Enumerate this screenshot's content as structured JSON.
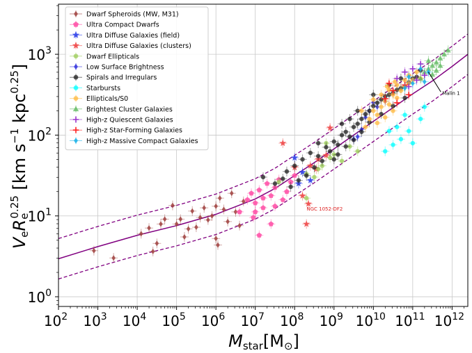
{
  "chart_data": {
    "type": "scatter",
    "title": "",
    "xlabel": {
      "main": "M",
      "sub": "star",
      "unit_open": "[M",
      "unit_sub": "⊙",
      "unit_close": "]"
    },
    "ylabel": {
      "v": "V",
      "v_sub": "e",
      "r": "R",
      "r_sub": "e",
      "r_sup": "0.25",
      "units_open": " [km s",
      "s_sup": "−1",
      "kpc": " kpc",
      "kpc_sup": "0.25",
      "units_close": "]"
    },
    "xlim_log10": [
      2,
      12.4
    ],
    "ylim_log10": [
      -0.12,
      3.62
    ],
    "grid": true,
    "legend_position": "top-left",
    "x_ticks": [
      {
        "exp": 2,
        "base": "10",
        "sup": "2"
      },
      {
        "exp": 3,
        "base": "10",
        "sup": "3"
      },
      {
        "exp": 4,
        "base": "10",
        "sup": "4"
      },
      {
        "exp": 5,
        "base": "10",
        "sup": "5"
      },
      {
        "exp": 6,
        "base": "10",
        "sup": "6"
      },
      {
        "exp": 7,
        "base": "10",
        "sup": "7"
      },
      {
        "exp": 8,
        "base": "10",
        "sup": "8"
      },
      {
        "exp": 9,
        "base": "10",
        "sup": "9"
      },
      {
        "exp": 10,
        "base": "10",
        "sup": "10"
      },
      {
        "exp": 11,
        "base": "10",
        "sup": "11"
      },
      {
        "exp": 12,
        "base": "10",
        "sup": "12"
      }
    ],
    "y_ticks": [
      {
        "exp": 0,
        "base": "10",
        "sup": "0"
      },
      {
        "exp": 1,
        "base": "10",
        "sup": "1"
      },
      {
        "exp": 2,
        "base": "10",
        "sup": "2"
      },
      {
        "exp": 3,
        "base": "10",
        "sup": "3"
      }
    ],
    "relation": {
      "name": "best-fit relation",
      "log_x": [
        2.0,
        3.0,
        4.0,
        5.0,
        6.0,
        7.0,
        7.5,
        8.0,
        8.5,
        9.0,
        9.5,
        10.0,
        10.5,
        11.0,
        11.5,
        12.0,
        12.4
      ],
      "center_log_y": [
        0.47,
        0.62,
        0.76,
        0.88,
        1.02,
        1.21,
        1.34,
        1.5,
        1.66,
        1.83,
        2.0,
        2.17,
        2.34,
        2.51,
        2.67,
        2.85,
        3.0
      ],
      "scatter_dex": 0.25,
      "color": "#800080"
    },
    "series": [
      {
        "name": "Dwarf Spheroids (MW, M31)",
        "marker": "diamond",
        "color": "#a0423f",
        "points": [
          [
            2.9,
            0.57
          ],
          [
            3.4,
            0.48
          ],
          [
            4.1,
            0.78
          ],
          [
            4.3,
            0.85
          ],
          [
            4.4,
            0.56
          ],
          [
            4.5,
            0.66
          ],
          [
            4.7,
            0.96
          ],
          [
            5.1,
            0.96
          ],
          [
            5.3,
            0.84
          ],
          [
            5.5,
            0.86
          ],
          [
            5.8,
            0.95
          ],
          [
            6.0,
            0.72
          ],
          [
            6.05,
            0.64
          ],
          [
            6.3,
            0.93
          ],
          [
            6.5,
            1.05
          ],
          [
            6.7,
            1.18
          ],
          [
            5.7,
            1.1
          ],
          [
            6.0,
            1.12
          ],
          [
            6.2,
            1.08
          ],
          [
            5.6,
            0.98
          ],
          [
            5.9,
            1.0
          ],
          [
            5.4,
            1.06
          ],
          [
            4.9,
            1.13
          ],
          [
            6.1,
            1.22
          ],
          [
            6.4,
            1.28
          ],
          [
            5.2,
            0.74
          ],
          [
            5.0,
            0.9
          ],
          [
            6.6,
            0.88
          ],
          [
            4.6,
            0.9
          ]
        ]
      },
      {
        "name": "Ultra Compact Dwarfs",
        "marker": "pentagon",
        "color": "#ff4da6",
        "points": [
          [
            6.8,
            1.2
          ],
          [
            6.9,
            1.28
          ],
          [
            7.0,
            1.16
          ],
          [
            7.1,
            1.32
          ],
          [
            7.2,
            1.1
          ],
          [
            7.3,
            1.4
          ],
          [
            7.4,
            1.25
          ],
          [
            7.5,
            1.35
          ],
          [
            7.6,
            1.45
          ],
          [
            7.2,
            1.22
          ],
          [
            7.0,
            1.05
          ],
          [
            7.8,
            1.3
          ],
          [
            7.9,
            1.42
          ],
          [
            8.0,
            1.5
          ],
          [
            7.7,
            1.2
          ],
          [
            6.95,
            0.98
          ],
          [
            7.4,
            0.9
          ],
          [
            7.1,
            0.76
          ],
          [
            7.5,
            1.12
          ],
          [
            6.6,
            1.05
          ]
        ]
      },
      {
        "name": "Ultra Diffuse Galaxies (field)",
        "marker": "star",
        "color": "#2b3de8",
        "points": [
          [
            8.0,
            1.72
          ],
          [
            8.2,
            1.54
          ],
          [
            8.4,
            1.44
          ],
          [
            8.1,
            1.4
          ]
        ]
      },
      {
        "name": "Ultra Diffuse Galaxies (clusters)",
        "marker": "star",
        "color": "#ee4444",
        "points": [
          [
            7.7,
            1.9
          ],
          [
            8.3,
            0.9
          ],
          [
            8.35,
            1.15
          ],
          [
            8.55,
            1.58
          ],
          [
            8.8,
            1.75
          ],
          [
            8.6,
            1.7
          ],
          [
            8.4,
            1.62
          ],
          [
            8.9,
            2.09
          ],
          [
            8.0,
            1.6
          ],
          [
            8.2,
            1.25
          ]
        ]
      },
      {
        "name": "Dwarf Ellipticals",
        "marker": "circle",
        "color": "#9ccc5a",
        "points": [
          [
            8.3,
            1.22
          ],
          [
            8.5,
            1.48
          ],
          [
            8.7,
            1.62
          ],
          [
            8.9,
            1.72
          ],
          [
            9.0,
            1.76
          ],
          [
            9.2,
            1.68
          ],
          [
            8.6,
            1.58
          ],
          [
            8.3,
            1.52
          ],
          [
            9.4,
            1.86
          ],
          [
            9.6,
            1.8
          ],
          [
            8.8,
            1.9
          ],
          [
            7.6,
            1.42
          ]
        ]
      },
      {
        "name": "Low Surface Brightness",
        "marker": "diamond",
        "color": "#3333dd",
        "points": [
          [
            9.6,
            1.98
          ],
          [
            9.7,
            2.07
          ],
          [
            9.8,
            2.22
          ],
          [
            9.9,
            2.3
          ],
          [
            10.0,
            2.4
          ],
          [
            10.1,
            2.35
          ],
          [
            9.5,
            1.95
          ],
          [
            10.3,
            2.42
          ]
        ]
      },
      {
        "name": "Spirals and Irregulars",
        "marker": "circle",
        "color": "#222222",
        "points": [
          [
            7.2,
            1.48
          ],
          [
            7.5,
            1.4
          ],
          [
            7.8,
            1.55
          ],
          [
            8.0,
            1.62
          ],
          [
            8.2,
            1.7
          ],
          [
            8.4,
            1.78
          ],
          [
            8.6,
            1.74
          ],
          [
            8.8,
            1.85
          ],
          [
            8.9,
            1.8
          ],
          [
            9.0,
            1.92
          ],
          [
            9.1,
            1.88
          ],
          [
            9.2,
            2.0
          ],
          [
            9.3,
            2.04
          ],
          [
            9.4,
            1.98
          ],
          [
            9.5,
            2.1
          ],
          [
            9.6,
            2.14
          ],
          [
            9.7,
            2.2
          ],
          [
            9.8,
            2.26
          ],
          [
            9.9,
            2.3
          ],
          [
            10.0,
            2.36
          ],
          [
            10.1,
            2.4
          ],
          [
            10.2,
            2.44
          ],
          [
            10.3,
            2.48
          ],
          [
            10.4,
            2.5
          ],
          [
            10.5,
            2.52
          ],
          [
            10.6,
            2.56
          ],
          [
            10.7,
            2.58
          ],
          [
            10.8,
            2.6
          ],
          [
            10.9,
            2.65
          ],
          [
            11.0,
            2.7
          ],
          [
            11.1,
            2.72
          ],
          [
            8.5,
            1.6
          ],
          [
            8.7,
            1.68
          ],
          [
            9.0,
            1.7
          ],
          [
            9.1,
            1.76
          ],
          [
            9.3,
            1.86
          ],
          [
            9.5,
            1.94
          ],
          [
            9.7,
            2.04
          ],
          [
            9.9,
            2.16
          ],
          [
            10.2,
            2.26
          ],
          [
            10.5,
            2.36
          ],
          [
            10.8,
            2.46
          ],
          [
            8.3,
            1.5
          ],
          [
            8.1,
            1.44
          ],
          [
            7.9,
            1.36
          ],
          [
            9.2,
            2.14
          ],
          [
            9.6,
            2.3
          ],
          [
            10.0,
            2.5
          ],
          [
            10.4,
            2.62
          ],
          [
            10.7,
            2.7
          ],
          [
            11.2,
            2.8
          ],
          [
            7.7,
            1.46
          ],
          [
            8.6,
            1.9
          ],
          [
            9.4,
            2.2
          ]
        ]
      },
      {
        "name": "Starbursts",
        "marker": "circle",
        "color": "#00ffff",
        "points": [
          [
            10.3,
            1.8
          ],
          [
            10.5,
            1.88
          ],
          [
            10.7,
            1.95
          ],
          [
            10.9,
            2.05
          ],
          [
            11.0,
            1.9
          ],
          [
            10.6,
            2.1
          ],
          [
            10.8,
            2.25
          ],
          [
            11.2,
            2.2
          ],
          [
            10.4,
            2.05
          ],
          [
            11.3,
            2.35
          ]
        ]
      },
      {
        "name": "Ellipticals/S0",
        "marker": "circle",
        "color": "#ffb940",
        "points": [
          [
            9.8,
            2.1
          ],
          [
            9.9,
            2.2
          ],
          [
            10.0,
            2.3
          ],
          [
            10.1,
            2.25
          ],
          [
            10.2,
            2.35
          ],
          [
            10.3,
            2.42
          ],
          [
            10.4,
            2.38
          ],
          [
            10.5,
            2.5
          ],
          [
            10.6,
            2.46
          ],
          [
            10.7,
            2.55
          ],
          [
            10.8,
            2.6
          ],
          [
            10.9,
            2.64
          ],
          [
            11.0,
            2.68
          ],
          [
            10.2,
            2.5
          ],
          [
            10.4,
            2.56
          ],
          [
            10.6,
            2.62
          ],
          [
            10.8,
            2.68
          ],
          [
            10.1,
            2.15
          ],
          [
            10.3,
            2.22
          ],
          [
            10.5,
            2.3
          ],
          [
            10.0,
            2.44
          ],
          [
            9.7,
            2.3
          ],
          [
            10.9,
            2.74
          ],
          [
            11.1,
            2.78
          ],
          [
            11.2,
            2.7
          ],
          [
            10.35,
            2.6
          ],
          [
            10.55,
            2.66
          ]
        ]
      },
      {
        "name": "Brightest Cluster Galaxies",
        "marker": "triangle",
        "color": "#5cb85c",
        "points": [
          [
            11.3,
            2.78
          ],
          [
            11.4,
            2.82
          ],
          [
            11.5,
            2.86
          ],
          [
            11.6,
            2.9
          ],
          [
            11.7,
            2.95
          ],
          [
            11.8,
            3.0
          ],
          [
            11.5,
            2.75
          ],
          [
            11.7,
            2.86
          ],
          [
            11.4,
            2.92
          ],
          [
            11.6,
            2.8
          ],
          [
            11.9,
            3.05
          ],
          [
            11.2,
            2.7
          ]
        ]
      },
      {
        "name": "High-z Quiescent Galaxies",
        "marker": "plus",
        "color": "#9932cc",
        "points": [
          [
            10.6,
            2.7
          ],
          [
            10.8,
            2.78
          ],
          [
            11.0,
            2.82
          ],
          [
            11.1,
            2.68
          ],
          [
            11.2,
            2.88
          ],
          [
            11.3,
            2.74
          ],
          [
            10.9,
            2.6
          ]
        ]
      },
      {
        "name": "High-z Star-Forming Galaxies",
        "marker": "plus",
        "color": "#ff2222",
        "points": [
          [
            10.3,
            2.45
          ],
          [
            10.5,
            2.55
          ],
          [
            10.6,
            2.4
          ],
          [
            10.8,
            2.62
          ],
          [
            10.4,
            2.64
          ],
          [
            10.9,
            2.5
          ]
        ]
      },
      {
        "name": "High-z Massive Compact Galaxies",
        "marker": "diamond",
        "color": "#1ab2e8",
        "points": [
          [
            10.8,
            2.58
          ],
          [
            10.9,
            2.72
          ],
          [
            11.0,
            2.64
          ],
          [
            11.2,
            2.82
          ],
          [
            11.4,
            2.78
          ],
          [
            11.3,
            2.66
          ]
        ]
      }
    ],
    "annotations": [
      {
        "text": "NGC 1052-DF2",
        "log_x": 8.25,
        "log_y": 1.22,
        "color": "#dd2222"
      },
      {
        "text": "Malin 1",
        "log_x": 11.4,
        "log_y": 2.78,
        "color": "#000000",
        "label_log_x": 11.75,
        "label_log_y": 2.5
      }
    ]
  }
}
